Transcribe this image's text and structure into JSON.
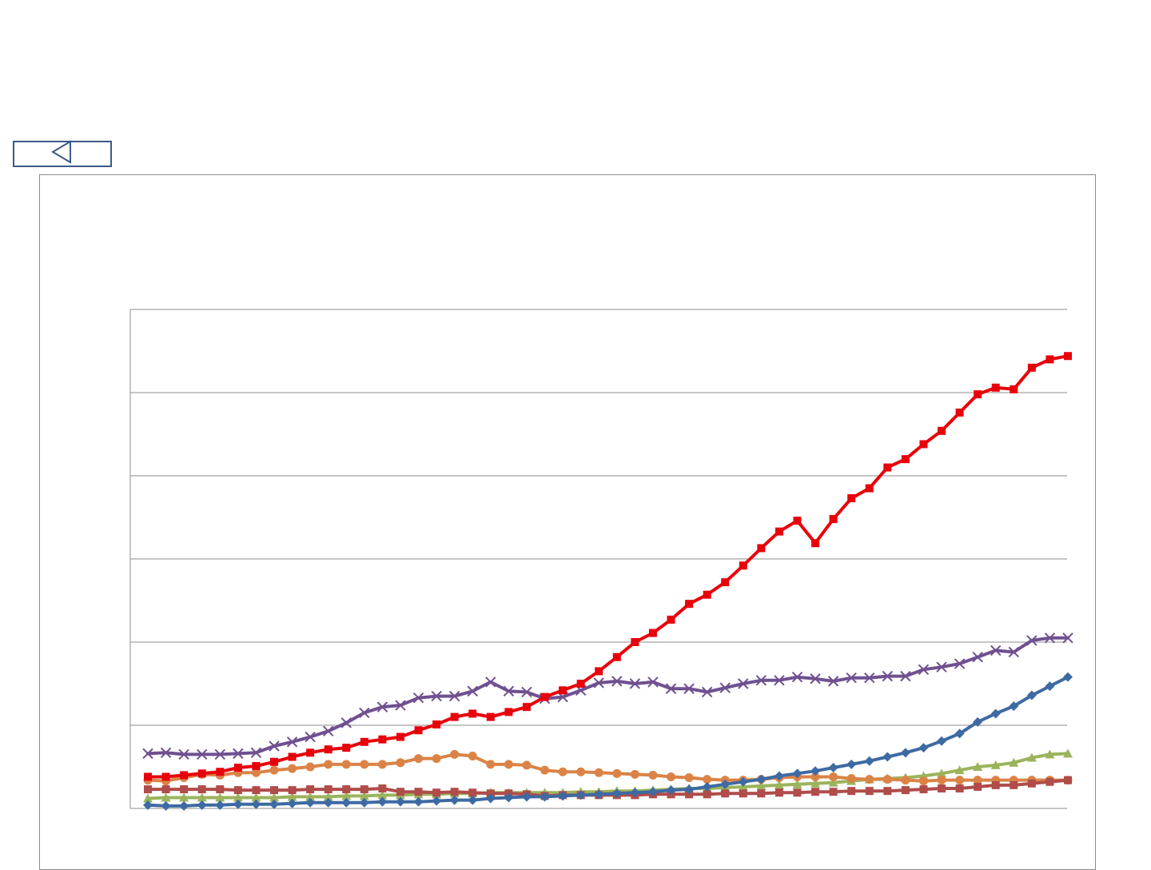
{
  "nav": {
    "back_icon": "triangle-left-icon"
  },
  "colors": {
    "frame": "#8c8c8c",
    "gridline": "#8c8c8c",
    "button_border": "#3b5a85"
  },
  "chart_data": {
    "type": "line",
    "title": "",
    "xlabel": "",
    "ylabel": "",
    "ylim": [
      0,
      6
    ],
    "gridlines": [
      1,
      2,
      3,
      4,
      5,
      6
    ],
    "grid": true,
    "legend": "none",
    "x": [
      1,
      2,
      3,
      4,
      5,
      6,
      7,
      8,
      9,
      10,
      11,
      12,
      13,
      14,
      15,
      16,
      17,
      18,
      19,
      20,
      21,
      22,
      23,
      24,
      25,
      26,
      27,
      28,
      29,
      30,
      31,
      32,
      33,
      34,
      35,
      36,
      37,
      38,
      39,
      40,
      41,
      42,
      43,
      44,
      45,
      46,
      47,
      48,
      49,
      50,
      51,
      52
    ],
    "series": [
      {
        "color": "#e8000b",
        "marker": "square",
        "values": [
          0.38,
          0.38,
          0.4,
          0.42,
          0.44,
          0.49,
          0.51,
          0.56,
          0.62,
          0.67,
          0.71,
          0.73,
          0.8,
          0.83,
          0.86,
          0.94,
          1.01,
          1.1,
          1.14,
          1.1,
          1.16,
          1.22,
          1.34,
          1.42,
          1.5,
          1.65,
          1.82,
          2.0,
          2.11,
          2.27,
          2.46,
          2.57,
          2.72,
          2.92,
          3.13,
          3.33,
          3.46,
          3.19,
          3.48,
          3.73,
          3.85,
          4.1,
          4.2,
          4.38,
          4.54,
          4.76,
          4.98,
          5.06,
          5.04,
          5.3,
          5.4,
          5.44
        ]
      },
      {
        "color": "#6f5090",
        "marker": "x",
        "values": [
          0.66,
          0.67,
          0.65,
          0.65,
          0.65,
          0.66,
          0.67,
          0.75,
          0.8,
          0.86,
          0.93,
          1.03,
          1.15,
          1.22,
          1.24,
          1.33,
          1.35,
          1.35,
          1.41,
          1.52,
          1.41,
          1.4,
          1.32,
          1.34,
          1.42,
          1.51,
          1.53,
          1.5,
          1.52,
          1.44,
          1.44,
          1.4,
          1.45,
          1.5,
          1.54,
          1.54,
          1.58,
          1.56,
          1.53,
          1.57,
          1.57,
          1.59,
          1.59,
          1.67,
          1.7,
          1.74,
          1.82,
          1.9,
          1.88,
          2.02,
          2.05,
          2.05
        ]
      },
      {
        "color": "#3e6aa3",
        "marker": "diamond",
        "values": [
          0.04,
          0.03,
          0.03,
          0.04,
          0.04,
          0.05,
          0.05,
          0.05,
          0.06,
          0.07,
          0.07,
          0.07,
          0.07,
          0.08,
          0.08,
          0.08,
          0.09,
          0.1,
          0.1,
          0.12,
          0.13,
          0.14,
          0.14,
          0.15,
          0.16,
          0.17,
          0.18,
          0.19,
          0.2,
          0.22,
          0.23,
          0.26,
          0.29,
          0.32,
          0.35,
          0.39,
          0.42,
          0.45,
          0.49,
          0.53,
          0.57,
          0.62,
          0.67,
          0.73,
          0.81,
          0.9,
          1.04,
          1.14,
          1.23,
          1.36,
          1.47,
          1.58
        ]
      },
      {
        "color": "#db8347",
        "marker": "circle",
        "values": [
          0.34,
          0.33,
          0.37,
          0.41,
          0.4,
          0.43,
          0.43,
          0.46,
          0.48,
          0.5,
          0.53,
          0.53,
          0.53,
          0.53,
          0.55,
          0.6,
          0.6,
          0.65,
          0.63,
          0.53,
          0.53,
          0.52,
          0.46,
          0.44,
          0.44,
          0.43,
          0.42,
          0.41,
          0.4,
          0.38,
          0.37,
          0.35,
          0.34,
          0.34,
          0.35,
          0.37,
          0.38,
          0.38,
          0.38,
          0.36,
          0.35,
          0.35,
          0.34,
          0.33,
          0.34,
          0.34,
          0.34,
          0.34,
          0.34,
          0.34,
          0.34,
          0.34
        ]
      },
      {
        "color": "#9bb45c",
        "marker": "triangle",
        "values": [
          0.12,
          0.13,
          0.13,
          0.13,
          0.13,
          0.13,
          0.13,
          0.13,
          0.14,
          0.14,
          0.14,
          0.15,
          0.15,
          0.16,
          0.16,
          0.17,
          0.17,
          0.18,
          0.18,
          0.19,
          0.19,
          0.19,
          0.19,
          0.19,
          0.2,
          0.2,
          0.21,
          0.21,
          0.22,
          0.23,
          0.24,
          0.24,
          0.25,
          0.26,
          0.27,
          0.28,
          0.29,
          0.3,
          0.31,
          0.33,
          0.35,
          0.36,
          0.37,
          0.39,
          0.42,
          0.46,
          0.5,
          0.52,
          0.55,
          0.61,
          0.65,
          0.66
        ]
      },
      {
        "color": "#b04c4a",
        "marker": "square",
        "values": [
          0.23,
          0.23,
          0.23,
          0.23,
          0.23,
          0.22,
          0.22,
          0.22,
          0.22,
          0.23,
          0.23,
          0.23,
          0.23,
          0.24,
          0.2,
          0.2,
          0.19,
          0.2,
          0.19,
          0.18,
          0.18,
          0.17,
          0.15,
          0.16,
          0.16,
          0.16,
          0.16,
          0.16,
          0.17,
          0.17,
          0.17,
          0.17,
          0.18,
          0.18,
          0.18,
          0.19,
          0.19,
          0.2,
          0.2,
          0.21,
          0.21,
          0.21,
          0.22,
          0.23,
          0.24,
          0.24,
          0.26,
          0.28,
          0.28,
          0.3,
          0.32,
          0.34
        ]
      }
    ]
  }
}
